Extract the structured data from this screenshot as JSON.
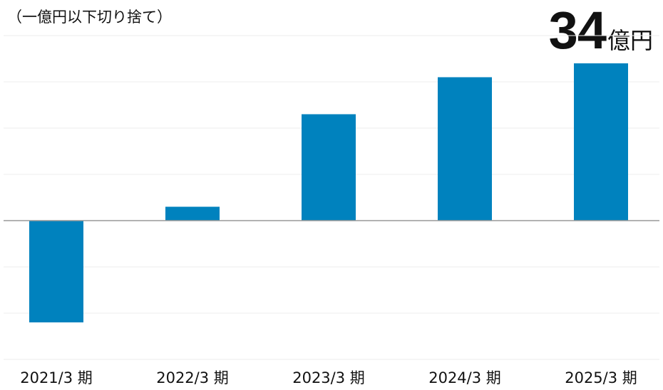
{
  "chart_data": {
    "type": "bar",
    "note": "（一億円以下切り捨て）",
    "headline": {
      "value": "34",
      "unit": "億円"
    },
    "categories": [
      "2021/3 期",
      "2022/3 期",
      "2023/3 期",
      "2024/3 期",
      "2025/3 期"
    ],
    "values": [
      -22,
      3,
      23,
      31,
      34
    ],
    "ylim": [
      -30,
      40
    ],
    "ytick_step": 10,
    "grid": true,
    "bar_color": "#0082be",
    "grid_color": "#eeeeee",
    "zero_line_color": "#999999"
  }
}
